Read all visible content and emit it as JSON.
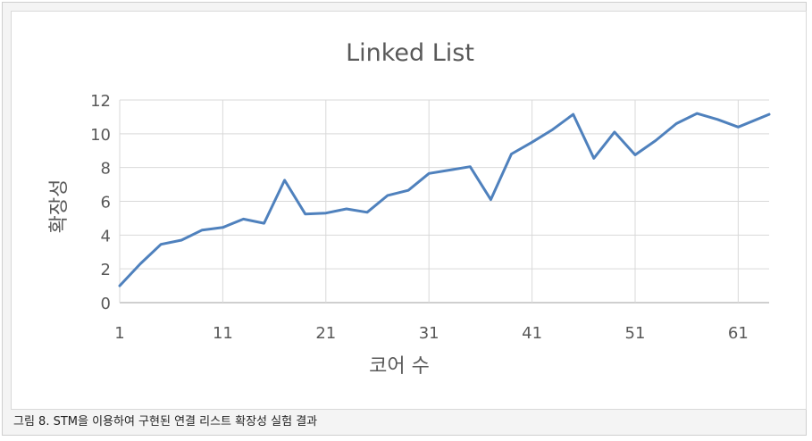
{
  "chart_data": {
    "type": "line",
    "title": "Linked List",
    "xlabel": "코어 수",
    "ylabel": "확장성",
    "x_ticks": [
      1,
      11,
      21,
      31,
      41,
      51,
      61
    ],
    "y_ticks": [
      0,
      2,
      4,
      6,
      8,
      10,
      12
    ],
    "xlim": [
      1,
      64
    ],
    "ylim": [
      0,
      12
    ],
    "grid": true,
    "line_color": "#4f81bd",
    "series": [
      {
        "x": [
          1,
          3,
          5,
          7,
          9,
          11,
          13,
          15,
          17,
          19,
          21,
          23,
          25,
          27,
          29,
          31,
          33,
          35,
          37,
          39,
          41,
          43,
          45,
          47,
          49,
          51,
          53,
          55,
          57,
          59,
          61,
          64
        ],
        "values": [
          1.0,
          2.3,
          3.45,
          3.7,
          4.3,
          4.45,
          4.95,
          4.7,
          7.25,
          5.25,
          5.3,
          5.55,
          5.35,
          6.35,
          6.65,
          7.65,
          7.85,
          8.05,
          6.1,
          8.8,
          9.5,
          10.25,
          11.15,
          8.55,
          10.1,
          8.75,
          9.6,
          10.6,
          11.2,
          10.85,
          10.4,
          11.15
        ]
      }
    ]
  },
  "caption": "그림 8. STM을 이용하여 구현된 연결 리스트 확장성 실험 결과"
}
